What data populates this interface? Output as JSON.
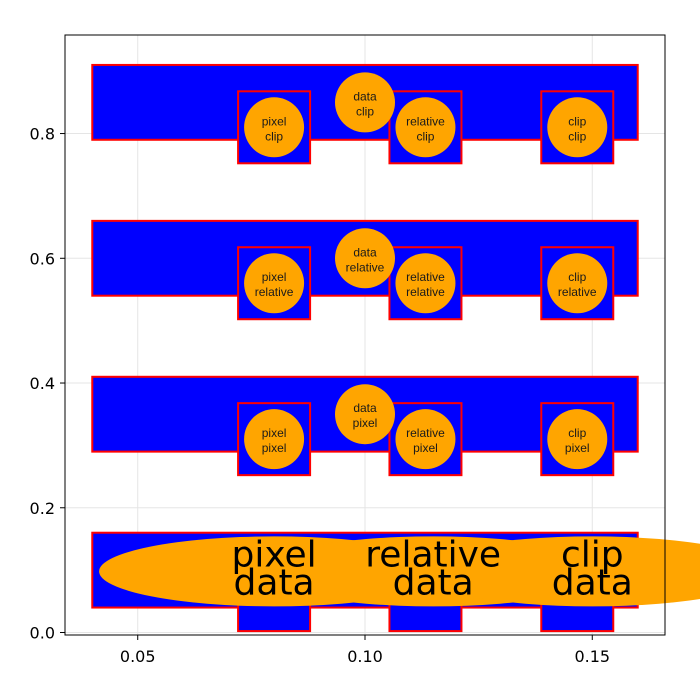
{
  "chart_data": {
    "type": "scatter",
    "title": "",
    "xlabel": "",
    "ylabel": "",
    "xlim": [
      0.034,
      0.166
    ],
    "ylim": [
      -0.004,
      0.958
    ],
    "xticks": [
      {
        "value": 0.05,
        "label": "0.05"
      },
      {
        "value": 0.1,
        "label": "0.10"
      },
      {
        "value": 0.15,
        "label": "0.15"
      }
    ],
    "yticks": [
      {
        "value": 0.0,
        "label": "0.0"
      },
      {
        "value": 0.2,
        "label": "0.2"
      },
      {
        "value": 0.4,
        "label": "0.4"
      },
      {
        "value": 0.6,
        "label": "0.6"
      },
      {
        "value": 0.8,
        "label": "0.8"
      }
    ],
    "grid": true,
    "colors": {
      "band_fill": "#0000ff",
      "outline": "#ff0000",
      "marker": "#ffa500",
      "grid": "#e5e5e5",
      "axis": "#000000"
    },
    "rows": [
      {
        "y_center": 0.85,
        "band": {
          "x0": 0.04,
          "x1": 0.16,
          "y0": 0.79,
          "y1": 0.91
        },
        "markers": [
          {
            "x": 0.08,
            "y": 0.81,
            "line1": "pixel",
            "line2": "clip",
            "boxed": true
          },
          {
            "x": 0.1,
            "y": 0.85,
            "line1": "data",
            "line2": "clip",
            "boxed": false
          },
          {
            "x": 0.1133,
            "y": 0.81,
            "line1": "relative",
            "line2": "clip",
            "boxed": true
          },
          {
            "x": 0.1467,
            "y": 0.81,
            "line1": "clip",
            "line2": "clip",
            "boxed": true
          }
        ]
      },
      {
        "y_center": 0.6,
        "band": {
          "x0": 0.04,
          "x1": 0.16,
          "y0": 0.54,
          "y1": 0.66
        },
        "markers": [
          {
            "x": 0.08,
            "y": 0.56,
            "line1": "pixel",
            "line2": "relative",
            "boxed": true
          },
          {
            "x": 0.1,
            "y": 0.6,
            "line1": "data",
            "line2": "relative",
            "boxed": false
          },
          {
            "x": 0.1133,
            "y": 0.56,
            "line1": "relative",
            "line2": "relative",
            "boxed": true
          },
          {
            "x": 0.1467,
            "y": 0.56,
            "line1": "clip",
            "line2": "relative",
            "boxed": true
          }
        ]
      },
      {
        "y_center": 0.35,
        "band": {
          "x0": 0.04,
          "x1": 0.16,
          "y0": 0.29,
          "y1": 0.41
        },
        "markers": [
          {
            "x": 0.08,
            "y": 0.31,
            "line1": "pixel",
            "line2": "pixel",
            "boxed": true
          },
          {
            "x": 0.1,
            "y": 0.35,
            "line1": "data",
            "line2": "pixel",
            "boxed": false
          },
          {
            "x": 0.1133,
            "y": 0.31,
            "line1": "relative",
            "line2": "pixel",
            "boxed": true
          },
          {
            "x": 0.1467,
            "y": 0.31,
            "line1": "clip",
            "line2": "pixel",
            "boxed": true
          }
        ]
      },
      {
        "y_center": 0.1,
        "band": {
          "x0": 0.04,
          "x1": 0.16,
          "y0": 0.04,
          "y1": 0.16
        },
        "boxes_x": [
          0.08,
          0.1133,
          0.1467
        ],
        "box_y": 0.06,
        "big_markers": [
          {
            "cx": 0.08,
            "cy": 0.098,
            "line1": "pixel",
            "line2": "data"
          },
          {
            "cx": 0.115,
            "cy": 0.098,
            "line1": "relative",
            "line2": "data"
          },
          {
            "cx": 0.15,
            "cy": 0.098,
            "line1": "clip",
            "line2": "data"
          }
        ]
      }
    ]
  }
}
